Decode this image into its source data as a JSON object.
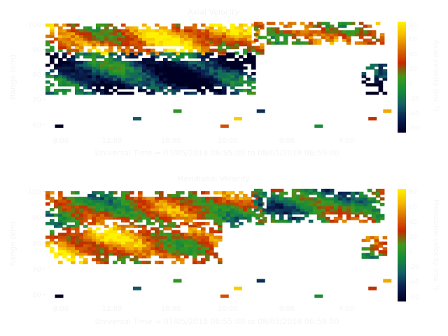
{
  "chart_data": [
    {
      "type": "heatmap",
      "title": "Axial Velocity",
      "ylabel": "Range (km)",
      "xlabel": "Universal Time = 07/05/2018 06:55:00 to 08/05/2018 06:59:00",
      "x_ticks": [
        "8:00",
        "12:00",
        "16:00",
        "20:00",
        "0:00",
        "4:00"
      ],
      "y_ticks": [
        "100",
        "90",
        "80",
        "70",
        "60"
      ],
      "ylim": [
        58,
        101
      ],
      "colorbar": {
        "label": "Axial velocity (ms⁻¹)",
        "ticks": [
          "80",
          "60",
          "40",
          "20",
          "0",
          "-20",
          "-40",
          "-60"
        ],
        "range": [
          -80,
          80
        ]
      },
      "colormap": [
        "#000025",
        "#0a2050",
        "#135f66",
        "#178a3a",
        "#3d9a1e",
        "#c82a00",
        "#d96e00",
        "#f5b800",
        "#fff200"
      ],
      "regions": [
        {
          "name": "upper-band-day",
          "t": [
            5.5,
            21.5
          ],
          "r": [
            88,
            100
          ],
          "value": 40
        },
        {
          "name": "lower-band-day",
          "t": [
            5.5,
            20.8
          ],
          "r": [
            72,
            88
          ],
          "value": -55
        },
        {
          "name": "upper-band-night",
          "t": [
            21.0,
            30.5
          ],
          "r": [
            92,
            100
          ],
          "value": 30
        },
        {
          "name": "lower-band-night",
          "t": [
            29.0,
            30.8
          ],
          "r": [
            72,
            84
          ],
          "value": -60
        }
      ]
    },
    {
      "type": "heatmap",
      "title": "Meridional Velocity",
      "ylabel": "Range (km)",
      "xlabel": "Universal Time = 07/05/2018 06:55:00 to 08/05/2018 06:59:00",
      "x_ticks": [
        "8:00",
        "12:00",
        "16:00",
        "20:00",
        "0:00",
        "4:00"
      ],
      "y_ticks": [
        "100",
        "90",
        "80",
        "70",
        "60"
      ],
      "ylim": [
        58,
        101
      ],
      "colorbar": {
        "label": "Meridional velocity (ms⁻¹)",
        "ticks": [
          "80",
          "60",
          "40",
          "20",
          "0",
          "-20",
          "-40",
          "-60"
        ],
        "range": [
          -80,
          80
        ]
      },
      "colormap": [
        "#000025",
        "#0a2050",
        "#135f66",
        "#178a3a",
        "#3d9a1e",
        "#c82a00",
        "#d96e00",
        "#f5b800",
        "#fff200"
      ],
      "regions": [
        {
          "name": "upper-band-day",
          "t": [
            5.5,
            21.5
          ],
          "r": [
            86,
            100
          ],
          "value": 10
        },
        {
          "name": "lower-band-day",
          "t": [
            5.5,
            18.5
          ],
          "r": [
            72,
            86
          ],
          "value": 35
        },
        {
          "name": "upper-band-night",
          "t": [
            21.0,
            30.5
          ],
          "r": [
            88,
            100
          ],
          "value": -10
        },
        {
          "name": "lower-band-night",
          "t": [
            29.0,
            30.8
          ],
          "r": [
            74,
            82
          ],
          "value": 20
        }
      ]
    }
  ]
}
